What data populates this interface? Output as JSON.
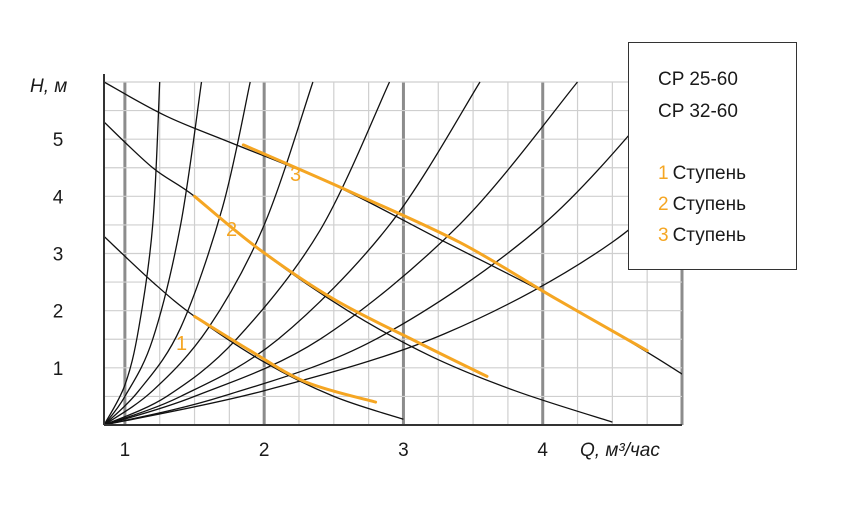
{
  "chart_data": {
    "type": "line",
    "title": "",
    "xlabel": "Q, м³/час",
    "ylabel": "H, м",
    "x_ticks": [
      "1",
      "2",
      "3",
      "4"
    ],
    "y_ticks": [
      "1",
      "2",
      "3",
      "4",
      "5"
    ],
    "xlim": [
      0.85,
      5.0
    ],
    "ylim": [
      0,
      6.0
    ],
    "grid": true,
    "series": [
      {
        "name": "1 Ступень",
        "label": "1",
        "color": "#f5a623",
        "x": [
          1.5,
          1.9,
          2.3,
          2.8
        ],
        "y": [
          1.9,
          1.3,
          0.75,
          0.4
        ]
      },
      {
        "name": "2 Ступень",
        "label": "2",
        "color": "#f5a623",
        "x": [
          1.5,
          1.95,
          2.5,
          3.1,
          3.6
        ],
        "y": [
          4.0,
          3.1,
          2.2,
          1.45,
          0.85
        ]
      },
      {
        "name": "3 Ступень",
        "label": "3",
        "color": "#f5a623",
        "x": [
          1.85,
          2.6,
          3.4,
          4.1,
          4.75
        ],
        "y": [
          4.9,
          4.1,
          3.2,
          2.2,
          1.3
        ]
      }
    ],
    "resistance_curves": [
      {
        "x": [
          0.85,
          1.0,
          1.1,
          1.2,
          1.25
        ],
        "y": [
          0.0,
          0.7,
          1.7,
          3.5,
          6.0
        ]
      },
      {
        "x": [
          0.85,
          1.0,
          1.2,
          1.4,
          1.55
        ],
        "y": [
          0.0,
          0.5,
          1.5,
          3.5,
          6.0
        ]
      },
      {
        "x": [
          0.85,
          1.1,
          1.4,
          1.7,
          1.9
        ],
        "y": [
          0.0,
          0.6,
          1.7,
          3.8,
          6.0
        ]
      },
      {
        "x": [
          0.85,
          1.2,
          1.6,
          2.0,
          2.35
        ],
        "y": [
          0.0,
          0.6,
          1.7,
          3.5,
          6.0
        ]
      },
      {
        "x": [
          0.85,
          1.3,
          1.8,
          2.4,
          2.9
        ],
        "y": [
          0.0,
          0.5,
          1.5,
          3.4,
          6.0
        ]
      },
      {
        "x": [
          0.85,
          1.4,
          2.1,
          2.9,
          3.55
        ],
        "y": [
          0.0,
          0.5,
          1.5,
          3.5,
          6.0
        ]
      },
      {
        "x": [
          0.85,
          1.5,
          2.4,
          3.4,
          4.25
        ],
        "y": [
          0.0,
          0.5,
          1.5,
          3.5,
          6.0
        ]
      },
      {
        "x": [
          0.85,
          1.7,
          2.8,
          4.0,
          4.95
        ],
        "y": [
          0.0,
          0.5,
          1.5,
          3.5,
          6.0
        ]
      },
      {
        "x": [
          0.85,
          2.0,
          3.3,
          4.5,
          5.4
        ],
        "y": [
          0.0,
          0.6,
          1.6,
          3.2,
          5.2
        ]
      }
    ],
    "pump_curves": [
      {
        "x": [
          0.85,
          1.2,
          1.5,
          2.0,
          2.5,
          3.0
        ],
        "y": [
          3.3,
          2.5,
          1.9,
          1.1,
          0.5,
          0.1
        ]
      },
      {
        "x": [
          0.85,
          1.2,
          1.5,
          2.0,
          2.6,
          3.2,
          3.8,
          4.5
        ],
        "y": [
          5.3,
          4.5,
          4.0,
          3.0,
          2.0,
          1.2,
          0.6,
          0.05
        ]
      },
      {
        "x": [
          0.85,
          1.3,
          1.8,
          2.5,
          3.3,
          4.1,
          4.8,
          5.5
        ],
        "y": [
          6.0,
          5.4,
          4.9,
          4.2,
          3.2,
          2.2,
          1.2,
          0.1
        ]
      }
    ]
  },
  "legend": {
    "models": [
      "CP 25-60",
      "CP 32-60"
    ],
    "stages": [
      {
        "num": "1",
        "text": "Ступень"
      },
      {
        "num": "2",
        "text": "Ступень"
      },
      {
        "num": "3",
        "text": "Ступень"
      }
    ]
  }
}
